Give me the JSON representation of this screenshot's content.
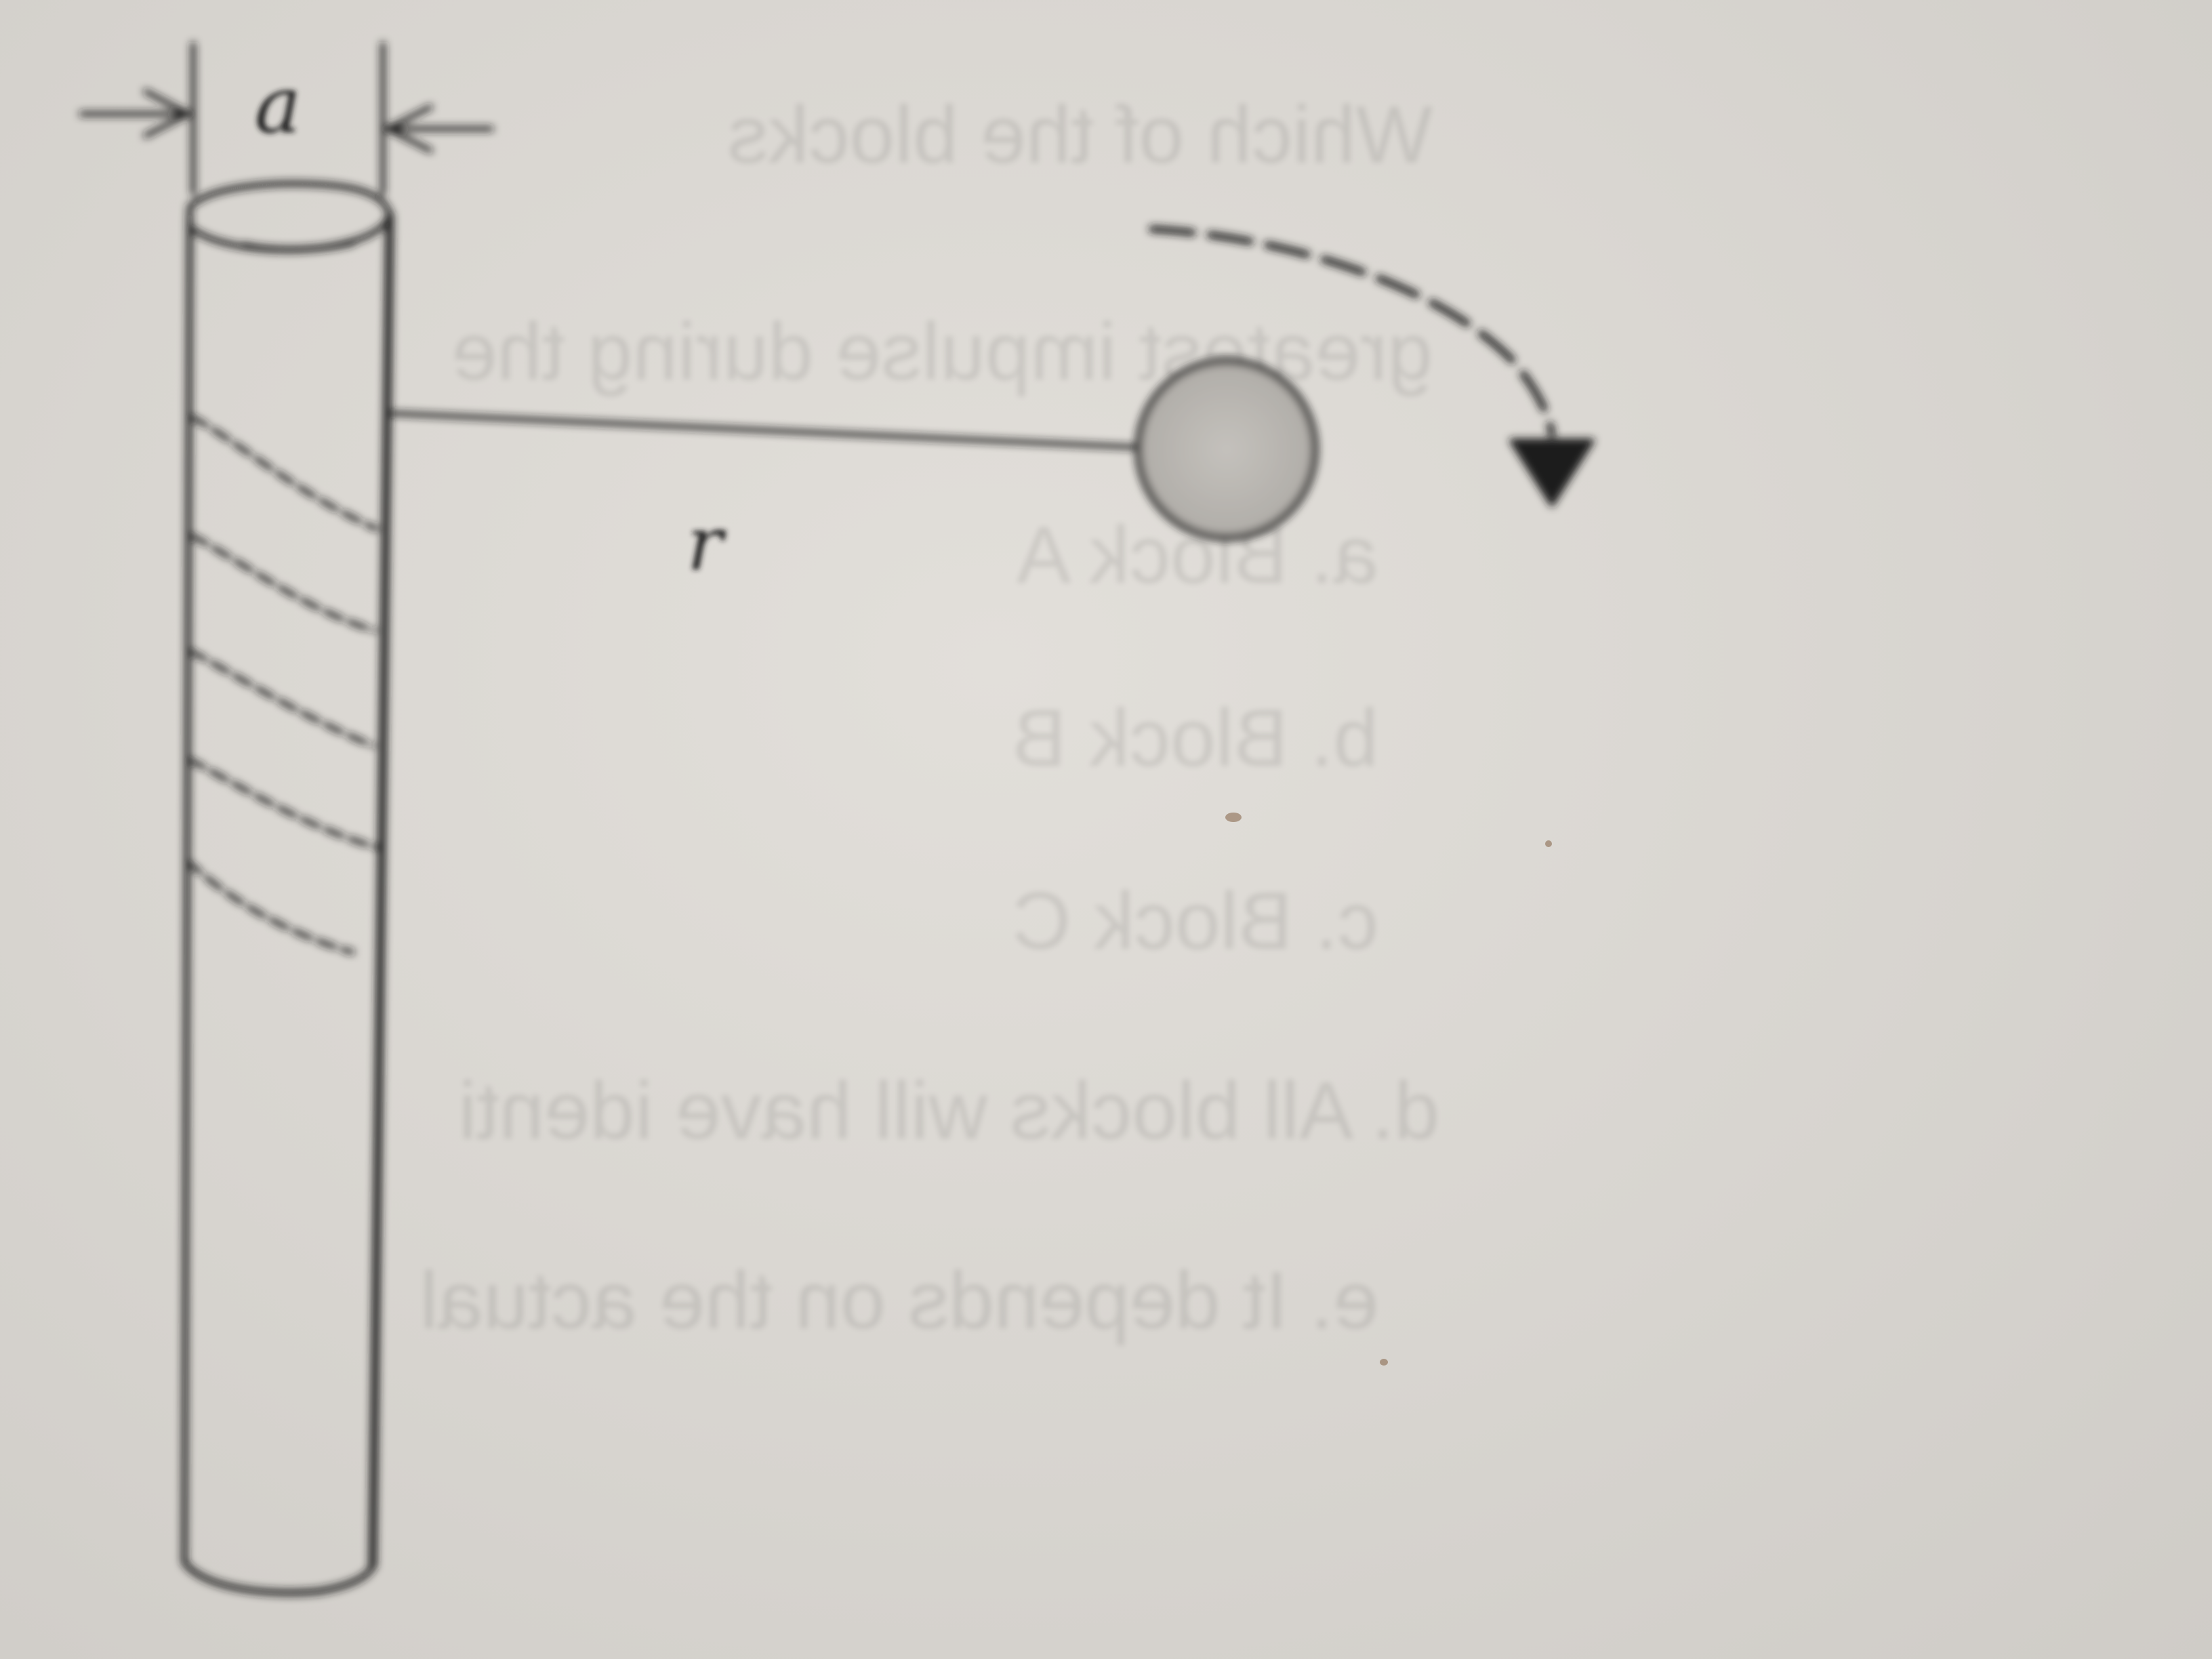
{
  "diagram": {
    "labels": {
      "width_label": "a",
      "radius_label": "r"
    },
    "bleed_through_text": [
      "Which of the blocks",
      "greatest impulse during the",
      "a.  Block A",
      "b.  Block B",
      "c.  Block C",
      "d.  All blocks will have identi",
      "e.  It depends on the actual"
    ],
    "colors": {
      "paper": "#d9d6d1",
      "ink": "#1e1e1e",
      "ball_fill": "#b9b6b1"
    }
  }
}
